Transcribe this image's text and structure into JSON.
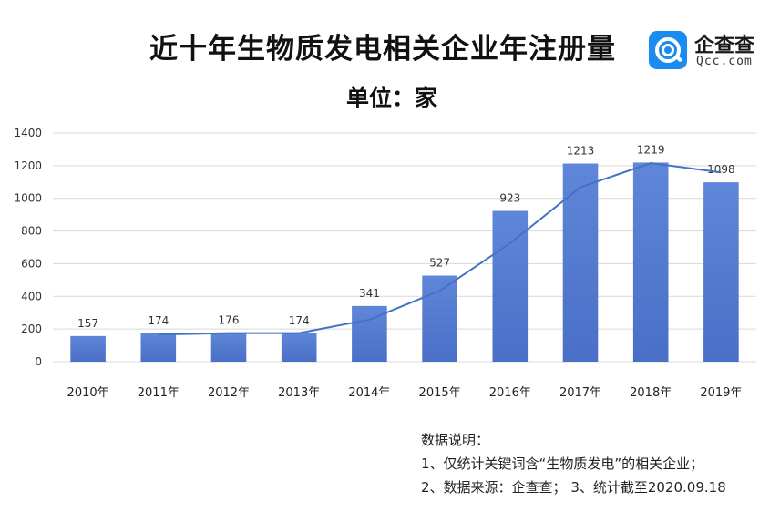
{
  "title": "近十年生物质发电相关企业年注册量",
  "subtitle": "单位：家",
  "logo": {
    "name": "企查查",
    "url": "Qcc.com"
  },
  "notes": {
    "heading": "数据说明：",
    "line1": "1、仅统计关键词含“生物质发电”的相关企业；",
    "line2": "2、数据来源：企查查；  3、统计截至2020.09.18"
  },
  "colors": {
    "bar": "#4a6fc7",
    "bar_light": "#5f86d8",
    "line": "#4472c4",
    "grid": "#d9d9d9"
  },
  "chart_data": {
    "type": "bar",
    "categories": [
      "2010年",
      "2011年",
      "2012年",
      "2013年",
      "2014年",
      "2015年",
      "2016年",
      "2017年",
      "2018年",
      "2019年"
    ],
    "values": [
      157,
      174,
      176,
      174,
      341,
      527,
      923,
      1213,
      1219,
      1098
    ],
    "trendline": "moving-average",
    "ylim": [
      0,
      1400
    ],
    "yticks": [
      0,
      200,
      400,
      600,
      800,
      1000,
      1200,
      1400
    ],
    "grid": true,
    "legend": "none"
  }
}
